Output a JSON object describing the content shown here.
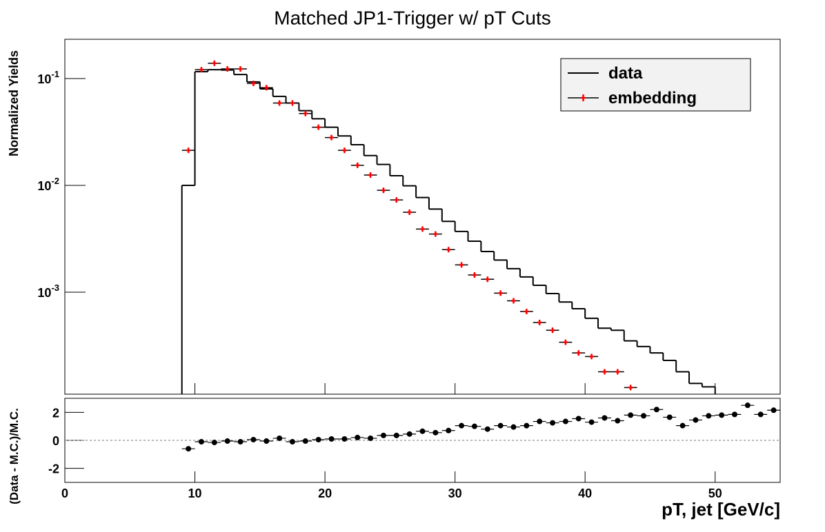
{
  "chart_data": [
    {
      "type": "histogram-points",
      "title": "Matched JP1-Trigger w/ pT Cuts",
      "ylabel": "Normalized Yields",
      "log_scale": true,
      "xlim": [
        0,
        55
      ],
      "ylim": [
        0.000111,
        0.233
      ],
      "yticks": [
        {
          "value": 0.001,
          "label": "10-3"
        },
        {
          "value": 0.01,
          "label": "10-2"
        },
        {
          "value": 0.1,
          "label": "10-1"
        }
      ],
      "legend": "top-right",
      "bins": [
        0,
        1,
        2,
        3,
        4,
        5,
        6,
        7,
        8,
        9,
        10,
        11,
        12,
        13,
        14,
        15,
        16,
        17,
        18,
        19,
        20,
        21,
        22,
        23,
        24,
        25,
        26,
        27,
        28,
        29,
        30,
        31,
        32,
        33,
        34,
        35,
        36,
        37,
        38,
        39,
        40,
        41,
        42,
        43,
        44,
        45,
        46,
        47,
        48,
        49,
        50,
        51,
        52,
        53,
        54,
        55
      ],
      "series": [
        {
          "name": "data",
          "color": "#000000",
          "values": [
            null,
            null,
            null,
            null,
            null,
            null,
            null,
            null,
            null,
            0.01,
            0.116,
            0.121,
            0.12,
            0.109,
            0.093,
            0.08,
            0.068,
            0.059,
            0.05,
            0.042,
            0.035,
            0.029,
            0.024,
            0.019,
            0.0157,
            0.0123,
            0.0099,
            0.0077,
            0.006,
            0.0046,
            0.0037,
            0.003,
            0.0024,
            0.002,
            0.00166,
            0.00139,
            0.00116,
            0.00097,
            0.00081,
            0.0007,
            0.00057,
            0.00046,
            0.00044,
            0.00035,
            0.00031,
            0.00027,
            0.00023,
            0.00018,
            0.00014,
            0.00013,
            null,
            null,
            null,
            null,
            null
          ]
        },
        {
          "name": "embedding",
          "color": "#ff0000",
          "x": [
            9.5,
            10.5,
            11.5,
            12.5,
            13.5,
            14.5,
            15.5,
            16.5,
            17.5,
            18.5,
            19.5,
            20.5,
            21.5,
            22.5,
            23.5,
            24.5,
            25.5,
            26.5,
            27.5,
            28.5,
            29.5,
            30.5,
            31.5,
            32.5,
            33.5,
            34.5,
            35.5,
            36.5,
            37.5,
            38.5,
            39.5,
            40.5,
            41.5,
            42.5,
            43.5
          ],
          "values": [
            0.0213,
            0.121,
            0.139,
            0.123,
            0.123,
            0.09,
            0.082,
            0.059,
            0.059,
            0.047,
            0.035,
            0.028,
            0.0213,
            0.0154,
            0.0125,
            0.009,
            0.0073,
            0.0056,
            0.0039,
            0.0035,
            0.0025,
            0.0018,
            0.00145,
            0.00132,
            0.00098,
            0.00083,
            0.00066,
            0.00052,
            0.00044,
            0.00034,
            0.00027,
            0.00025,
            0.00018,
            0.00018,
            0.000128
          ]
        }
      ]
    },
    {
      "type": "scatter",
      "ylabel": "(Data - M.C.)/M.C.",
      "xlabel": "pT, jet [GeV/c]",
      "xlim": [
        0,
        55
      ],
      "ylim": [
        -3,
        3
      ],
      "xticks": [
        0,
        10,
        20,
        30,
        40,
        50
      ],
      "yticks": [
        -2,
        0,
        2
      ],
      "color": "#000000",
      "x": [
        9.5,
        10.5,
        11.5,
        12.5,
        13.5,
        14.5,
        15.5,
        16.5,
        17.5,
        18.5,
        19.5,
        20.5,
        21.5,
        22.5,
        23.5,
        24.5,
        25.5,
        26.5,
        27.5,
        28.5,
        29.5,
        30.5,
        31.5,
        32.5,
        33.5,
        34.5,
        35.5,
        36.5,
        37.5,
        38.5,
        39.5,
        40.5,
        41.5,
        42.5,
        43.5,
        44.5,
        45.5,
        46.5,
        47.5,
        48.5,
        49.5,
        50.5,
        51.5,
        52.5,
        53.5,
        54.5
      ],
      "values": [
        -0.6,
        -0.1,
        -0.15,
        -0.05,
        -0.1,
        0.05,
        -0.05,
        0.15,
        -0.1,
        -0.05,
        0.05,
        0.1,
        0.1,
        0.2,
        0.15,
        0.35,
        0.35,
        0.45,
        0.65,
        0.55,
        0.7,
        1.05,
        1.0,
        0.8,
        1.05,
        0.95,
        1.05,
        1.35,
        1.25,
        1.35,
        1.55,
        1.3,
        1.6,
        1.4,
        1.8,
        1.75,
        2.2,
        1.65,
        1.05,
        1.45,
        1.75,
        1.8,
        1.85,
        2.5,
        1.85,
        2.15
      ]
    }
  ]
}
